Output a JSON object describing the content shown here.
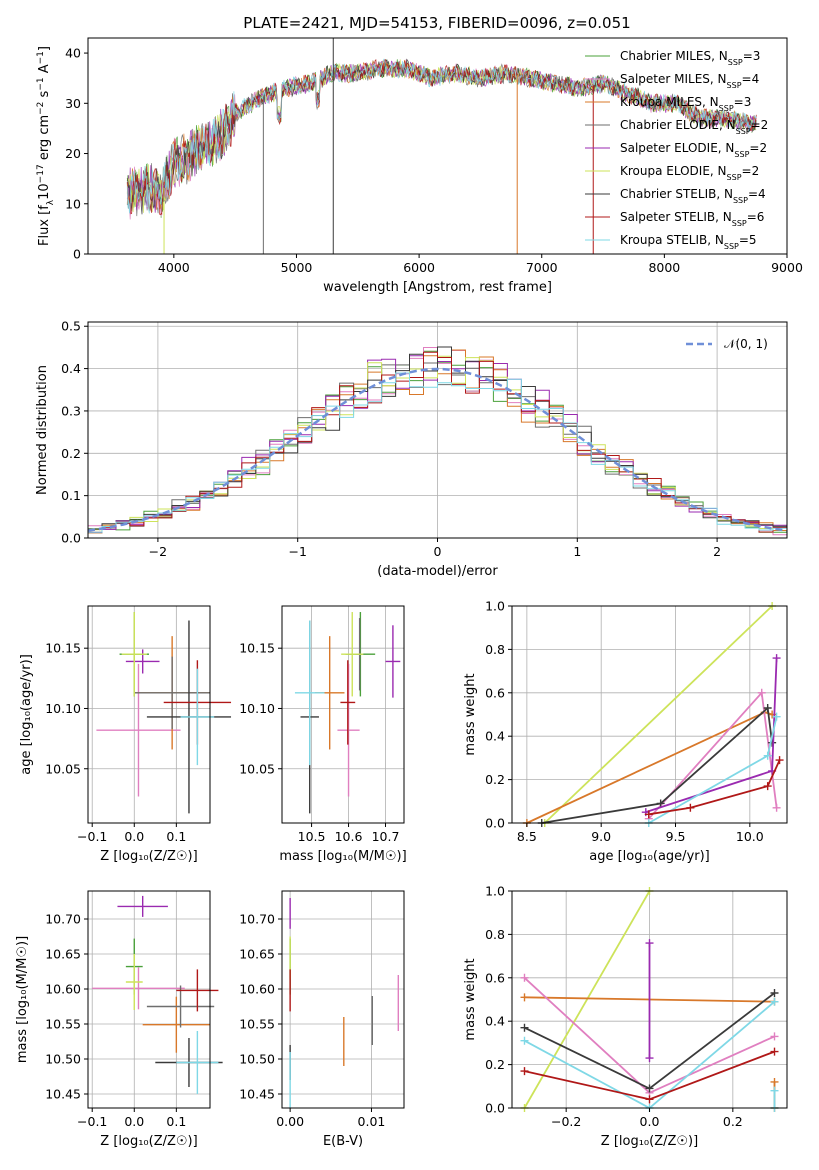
{
  "figure": {
    "title": "PLATE=2421, MJD=54153, FIBERID=0096, z=0.051"
  },
  "series_meta": [
    {
      "label": "Chabrier MILES, N",
      "sub": "SSP",
      "n": "=3",
      "color": "#4aa03a"
    },
    {
      "label": "Salpeter MILES, N",
      "sub": "SSP",
      "n": "=4",
      "color": "#e07fc0"
    },
    {
      "label": "Kroupa MILES, N",
      "sub": "SSP",
      "n": "=3",
      "color": "#d8782a"
    },
    {
      "label": "Chabrier ELODIE, N",
      "sub": "SSP",
      "n": "=2",
      "color": "#6e6e6e"
    },
    {
      "label": "Salpeter ELODIE, N",
      "sub": "SSP",
      "n": "=2",
      "color": "#9a2ab0"
    },
    {
      "label": "Kroupa ELODIE, N",
      "sub": "SSP",
      "n": "=2",
      "color": "#cde35a"
    },
    {
      "label": "Chabrier STELIB, N",
      "sub": "SSP",
      "n": "=4",
      "color": "#3a3a3a"
    },
    {
      "label": "Salpeter STELIB, N",
      "sub": "SSP",
      "n": "=6",
      "color": "#b01818"
    },
    {
      "label": "Kroupa STELIB, N",
      "sub": "SSP",
      "n": "=5",
      "color": "#7fd8e6"
    }
  ],
  "chart_data": [
    {
      "id": "spectrum",
      "type": "line",
      "title": "PLATE=2421, MJD=54153, FIBERID=0096, z=0.051",
      "xlabel": "wavelength [Angstrom, rest frame]",
      "ylabel_parts": [
        "Flux [f",
        "λ",
        "10",
        "−17",
        " erg cm",
        "−2",
        " s",
        "−1",
        " A",
        "−1",
        "]"
      ],
      "xlim": [
        3300,
        9000
      ],
      "ylim": [
        0,
        43
      ],
      "xticks": [
        4000,
        5000,
        6000,
        7000,
        8000,
        9000
      ],
      "yticks": [
        0,
        10,
        20,
        30,
        40
      ],
      "grid": false,
      "legend": "top-right",
      "continuum_x": [
        3600,
        3800,
        3900,
        4000,
        4100,
        4200,
        4300,
        4400,
        4500,
        4700,
        4900,
        5100,
        5300,
        5500,
        5700,
        5900,
        6100,
        6300,
        6500,
        6700,
        6900,
        7100,
        7300,
        7500,
        7700,
        7900,
        8100,
        8300,
        8500,
        8700
      ],
      "continuum_y": [
        12,
        13,
        12,
        18,
        19,
        21,
        22,
        24,
        28,
        31,
        33,
        34,
        36,
        36,
        37,
        37,
        35,
        36,
        35,
        36,
        35,
        34,
        33,
        34,
        32,
        30,
        30,
        27,
        27,
        26
      ]
    },
    {
      "id": "residuals",
      "type": "bar",
      "xlabel": "(data-model)/error",
      "ylabel": "Normed distribution",
      "xlim": [
        -2.5,
        2.5
      ],
      "ylim": [
        0,
        0.51
      ],
      "xticks": [
        -2,
        -1,
        0,
        1,
        2
      ],
      "yticks": [
        0.0,
        0.1,
        0.2,
        0.3,
        0.4,
        0.5
      ],
      "grid": true,
      "legend": "top-right",
      "curve_label": "𝒩(0, 1)",
      "bin_width": 0.1
    },
    {
      "id": "age_vs_Z",
      "type": "scatter",
      "xlabel": "Z [log₁₀(Z/Z☉)]",
      "ylabel": "age  [log₁₀(age/yr)]",
      "xlim": [
        -0.11,
        0.18
      ],
      "ylim": [
        10.005,
        10.185
      ],
      "xticks": [
        -0.1,
        0.0,
        0.1
      ],
      "yticks": [
        10.05,
        10.1,
        10.15
      ],
      "grid": true,
      "points": [
        {
          "x": 0.0,
          "y": 10.145,
          "xerr": 0.035,
          "yerr": 0.035,
          "c": 0
        },
        {
          "x": 0.01,
          "y": 10.082,
          "xerr": 0.1,
          "yerr": 0.055,
          "c": 1
        },
        {
          "x": 0.09,
          "y": 10.113,
          "xerr": 0.09,
          "yerr": 0.047,
          "c": 2
        },
        {
          "x": 0.09,
          "y": 10.113,
          "xerr": 0.09,
          "yerr": 0.03,
          "c": 3
        },
        {
          "x": 0.02,
          "y": 10.139,
          "xerr": 0.04,
          "yerr": 0.01,
          "c": 4
        },
        {
          "x": 0.0,
          "y": 10.145,
          "xerr": 0.03,
          "yerr": 0.035,
          "c": 5
        },
        {
          "x": 0.13,
          "y": 10.093,
          "xerr": 0.1,
          "yerr": 0.08,
          "c": 6
        },
        {
          "x": 0.15,
          "y": 10.105,
          "xerr": 0.08,
          "yerr": 0.035,
          "c": 7
        },
        {
          "x": 0.15,
          "y": 10.093,
          "xerr": 0.04,
          "yerr": 0.04,
          "c": 8
        }
      ]
    },
    {
      "id": "age_vs_mass",
      "type": "scatter",
      "xlabel": "mass [log₁₀(M/M☉)]",
      "ylabel": "",
      "xlim": [
        10.42,
        10.75
      ],
      "ylim": [
        10.005,
        10.185
      ],
      "xticks": [
        10.5,
        10.6,
        10.7
      ],
      "yticks": [
        10.05,
        10.1,
        10.15
      ],
      "grid": true,
      "points": [
        {
          "x": 10.632,
          "y": 10.145,
          "xerr": 0.04,
          "yerr": 0.035,
          "c": 0
        },
        {
          "x": 10.6,
          "y": 10.082,
          "xerr": 0.03,
          "yerr": 0.055,
          "c": 1
        },
        {
          "x": 10.549,
          "y": 10.113,
          "xerr": 0.04,
          "yerr": 0.047,
          "c": 2
        },
        {
          "x": 10.63,
          "y": 10.145,
          "xerr": 0.01,
          "yerr": 0.03,
          "c": 3
        },
        {
          "x": 10.72,
          "y": 10.139,
          "xerr": 0.02,
          "yerr": 0.03,
          "c": 4
        },
        {
          "x": 10.61,
          "y": 10.145,
          "xerr": 0.03,
          "yerr": 0.035,
          "c": 5
        },
        {
          "x": 10.495,
          "y": 10.093,
          "xerr": 0.025,
          "yerr": 0.08,
          "c": 6
        },
        {
          "x": 10.598,
          "y": 10.105,
          "xerr": 0.02,
          "yerr": 0.035,
          "c": 7
        },
        {
          "x": 10.495,
          "y": 10.113,
          "xerr": 0.04,
          "yerr": 0.06,
          "c": 8
        }
      ]
    },
    {
      "id": "massweight_vs_age",
      "type": "line",
      "xlabel": "age  [log₁₀(age/yr)]",
      "ylabel": "mass weight",
      "xlim": [
        8.4,
        10.25
      ],
      "ylim": [
        0,
        1.0
      ],
      "xticks": [
        8.5,
        9.0,
        9.5,
        10.0
      ],
      "yticks": [
        0.0,
        0.2,
        0.4,
        0.6,
        0.8,
        1.0
      ],
      "grid": true,
      "series": [
        {
          "c": 5,
          "x": [
            8.62,
            10.15
          ],
          "y": [
            0.0,
            1.0
          ]
        },
        {
          "c": 2,
          "x": [
            8.5,
            10.1,
            10.15
          ],
          "y": [
            0.0,
            0.51,
            0.5
          ]
        },
        {
          "c": 1,
          "x": [
            9.32,
            10.08,
            10.18
          ],
          "y": [
            0.02,
            0.6,
            0.07
          ]
        },
        {
          "c": 6,
          "x": [
            8.6,
            9.4,
            10.12,
            10.15
          ],
          "y": [
            0.0,
            0.09,
            0.53,
            0.37
          ]
        },
        {
          "c": 4,
          "x": [
            9.3,
            10.15,
            10.18
          ],
          "y": [
            0.05,
            0.24,
            0.76
          ]
        },
        {
          "c": 8,
          "x": [
            9.32,
            10.12,
            10.18
          ],
          "y": [
            0.0,
            0.31,
            0.49
          ]
        },
        {
          "c": 7,
          "x": [
            9.32,
            9.6,
            10.12,
            10.2
          ],
          "y": [
            0.04,
            0.07,
            0.17,
            0.29
          ]
        }
      ]
    },
    {
      "id": "mass_vs_Z",
      "type": "scatter",
      "xlabel": "Z [log₁₀(Z/Z☉)]",
      "ylabel": "mass [log₁₀(M/M☉)]",
      "xlim": [
        -0.11,
        0.18
      ],
      "ylim": [
        10.43,
        10.74
      ],
      "xticks": [
        -0.1,
        0.0,
        0.1
      ],
      "yticks": [
        10.45,
        10.5,
        10.55,
        10.6,
        10.65,
        10.7
      ],
      "grid": true,
      "points": [
        {
          "x": 0.0,
          "y": 10.632,
          "xerr": 0.02,
          "yerr": 0.04,
          "c": 0
        },
        {
          "x": 0.01,
          "y": 10.601,
          "xerr": 0.11,
          "yerr": 0.03,
          "c": 1
        },
        {
          "x": 0.1,
          "y": 10.549,
          "xerr": 0.08,
          "yerr": 0.04,
          "c": 2
        },
        {
          "x": 0.11,
          "y": 10.575,
          "xerr": 0.08,
          "yerr": 0.03,
          "c": 3
        },
        {
          "x": 0.02,
          "y": 10.718,
          "xerr": 0.06,
          "yerr": 0.015,
          "c": 4
        },
        {
          "x": 0.0,
          "y": 10.61,
          "xerr": 0.02,
          "yerr": 0.04,
          "c": 5
        },
        {
          "x": 0.13,
          "y": 10.495,
          "xerr": 0.08,
          "yerr": 0.035,
          "c": 6
        },
        {
          "x": 0.15,
          "y": 10.598,
          "xerr": 0.05,
          "yerr": 0.03,
          "c": 7
        },
        {
          "x": 0.15,
          "y": 10.495,
          "xerr": 0.05,
          "yerr": 0.045,
          "c": 8
        }
      ]
    },
    {
      "id": "mass_vs_ebv",
      "type": "scatter",
      "xlabel": "E(B-V)",
      "ylabel": "",
      "xlim": [
        -0.001,
        0.014
      ],
      "ylim": [
        10.43,
        10.74
      ],
      "xticks": [
        0.0,
        0.01
      ],
      "yticks": [
        10.45,
        10.5,
        10.55,
        10.6,
        10.65,
        10.7
      ],
      "grid": true,
      "points": [
        {
          "x": 0.0,
          "y": 10.632,
          "xerr": 0,
          "yerr": 0.04,
          "c": 0
        },
        {
          "x": 0.0133,
          "y": 10.58,
          "xerr": 0,
          "yerr": 0.04,
          "c": 1
        },
        {
          "x": 0.0066,
          "y": 10.525,
          "xerr": 0,
          "yerr": 0.035,
          "c": 2
        },
        {
          "x": 0.0101,
          "y": 10.555,
          "xerr": 0,
          "yerr": 0.035,
          "c": 3
        },
        {
          "x": 0.0,
          "y": 10.708,
          "xerr": 0,
          "yerr": 0.022,
          "c": 4
        },
        {
          "x": 0.0,
          "y": 10.645,
          "xerr": 0,
          "yerr": 0.03,
          "c": 5
        },
        {
          "x": 0.0,
          "y": 10.495,
          "xerr": 0,
          "yerr": 0.025,
          "c": 6
        },
        {
          "x": 0.0,
          "y": 10.598,
          "xerr": 0,
          "yerr": 0.03,
          "c": 7
        },
        {
          "x": 0.0,
          "y": 10.47,
          "xerr": 0,
          "yerr": 0.04,
          "c": 8
        }
      ]
    },
    {
      "id": "massweight_vs_Z",
      "type": "line",
      "xlabel": "Z [log₁₀(Z/Z☉)]",
      "ylabel": "mass weight",
      "xlim": [
        -0.33,
        0.33
      ],
      "ylim": [
        0,
        1.0
      ],
      "xticks": [
        -0.2,
        0.0,
        0.2
      ],
      "yticks": [
        0.0,
        0.2,
        0.4,
        0.6,
        0.8,
        1.0
      ],
      "grid": true,
      "series": [
        {
          "c": 5,
          "x": [
            -0.3,
            0.0
          ],
          "y": [
            0.0,
            1.0
          ]
        },
        {
          "c": 2,
          "x": [
            -0.3,
            0.3
          ],
          "y": [
            0.51,
            0.49
          ]
        },
        {
          "c": 1,
          "x": [
            -0.3,
            0.0,
            0.3
          ],
          "y": [
            0.6,
            0.07,
            0.33
          ]
        },
        {
          "c": 6,
          "x": [
            -0.3,
            0.0,
            0.3
          ],
          "y": [
            0.37,
            0.09,
            0.53
          ]
        },
        {
          "c": 4,
          "x": [
            0.0,
            0.0
          ],
          "y": [
            0.23,
            0.76
          ]
        },
        {
          "c": 8,
          "x": [
            -0.3,
            0.0,
            0.3
          ],
          "y": [
            0.31,
            0.0,
            0.49
          ]
        },
        {
          "c": 7,
          "x": [
            -0.3,
            0.0,
            0.3
          ],
          "y": [
            0.17,
            0.04,
            0.26
          ]
        },
        {
          "c": 2,
          "x": [
            0.3,
            0.3
          ],
          "y": [
            0.0,
            0.12
          ]
        },
        {
          "c": 8,
          "x": [
            0.3,
            0.3
          ],
          "y": [
            0.0,
            0.08
          ]
        }
      ]
    }
  ]
}
